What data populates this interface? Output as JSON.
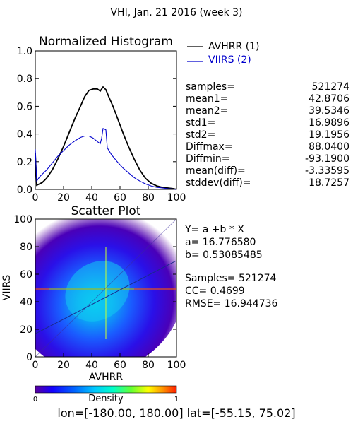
{
  "page_title": "VHI,  Jan. 21 2016 (week 3)",
  "region_text": "lon=[-180.00, 180.00] lat=[-55.15, 75.02]",
  "chart_data": [
    {
      "type": "line",
      "title": "Normalized Histogram",
      "xlabel": "",
      "ylabel": "",
      "xlim": [
        0,
        100
      ],
      "ylim": [
        0,
        1.0
      ],
      "x_ticks": [
        "0",
        "20",
        "40",
        "60",
        "80",
        "100"
      ],
      "y_ticks": [
        "0.0",
        "0.2",
        "0.4",
        "0.6",
        "0.8",
        "1.0"
      ],
      "grid": false,
      "legend_position": "right",
      "series": [
        {
          "name": "AVHRR (1)",
          "color": "#000000",
          "points": [
            [
              0,
              0.26
            ],
            [
              1,
              0.03
            ],
            [
              3,
              0.04
            ],
            [
              5,
              0.05
            ],
            [
              8,
              0.08
            ],
            [
              12,
              0.14
            ],
            [
              16,
              0.22
            ],
            [
              20,
              0.31
            ],
            [
              24,
              0.41
            ],
            [
              28,
              0.51
            ],
            [
              32,
              0.6
            ],
            [
              35,
              0.67
            ],
            [
              38,
              0.715
            ],
            [
              41,
              0.725
            ],
            [
              44,
              0.725
            ],
            [
              46,
              0.71
            ],
            [
              48,
              0.74
            ],
            [
              50,
              0.72
            ],
            [
              52,
              0.67
            ],
            [
              55,
              0.6
            ],
            [
              58,
              0.52
            ],
            [
              62,
              0.41
            ],
            [
              66,
              0.31
            ],
            [
              70,
              0.22
            ],
            [
              74,
              0.14
            ],
            [
              78,
              0.08
            ],
            [
              82,
              0.045
            ],
            [
              86,
              0.025
            ],
            [
              90,
              0.015
            ],
            [
              94,
              0.01
            ],
            [
              98,
              0.005
            ],
            [
              100,
              0.0
            ]
          ]
        },
        {
          "name": "VIIRS (2)",
          "color": "#0000cc",
          "points": [
            [
              0,
              0.29
            ],
            [
              1,
              0.06
            ],
            [
              3,
              0.09
            ],
            [
              5,
              0.11
            ],
            [
              8,
              0.14
            ],
            [
              12,
              0.19
            ],
            [
              16,
              0.24
            ],
            [
              20,
              0.28
            ],
            [
              24,
              0.32
            ],
            [
              28,
              0.35
            ],
            [
              32,
              0.375
            ],
            [
              35,
              0.385
            ],
            [
              38,
              0.385
            ],
            [
              41,
              0.37
            ],
            [
              44,
              0.345
            ],
            [
              46,
              0.33
            ],
            [
              47,
              0.37
            ],
            [
              48,
              0.44
            ],
            [
              50,
              0.43
            ],
            [
              51,
              0.3
            ],
            [
              54,
              0.25
            ],
            [
              58,
              0.2
            ],
            [
              62,
              0.155
            ],
            [
              66,
              0.12
            ],
            [
              70,
              0.085
            ],
            [
              74,
              0.06
            ],
            [
              78,
              0.04
            ],
            [
              82,
              0.025
            ],
            [
              86,
              0.015
            ],
            [
              90,
              0.01
            ],
            [
              94,
              0.005
            ],
            [
              98,
              0.002
            ],
            [
              100,
              0.0
            ]
          ]
        }
      ]
    },
    {
      "type": "heatmap",
      "title": "Scatter Plot",
      "xlabel": "AVHRR",
      "ylabel": "VIIRS",
      "xlim": [
        0,
        100
      ],
      "ylim": [
        0,
        100
      ],
      "x_ticks": [
        "0",
        "20",
        "40",
        "60",
        "80",
        "100"
      ],
      "y_ticks": [
        "0",
        "20",
        "40",
        "60",
        "80",
        "100"
      ],
      "fit_line": {
        "intercept": 16.77658,
        "slope": 0.53085485
      },
      "colorbar": {
        "label": "Density",
        "min_label": "0",
        "max_label": "1"
      },
      "colormap": [
        "#5a00a0",
        "#1400ff",
        "#0066ff",
        "#00c8ff",
        "#00ffc8",
        "#64ff32",
        "#ffff00",
        "#ff9600",
        "#ff1e00"
      ]
    }
  ],
  "stats": [
    {
      "label": "samples=",
      "value": "521274"
    },
    {
      "label": "mean1=",
      "value": "42.8706"
    },
    {
      "label": "mean2=",
      "value": "39.5346"
    },
    {
      "label": "std1=",
      "value": "16.9896"
    },
    {
      "label": "std2=",
      "value": "19.1956"
    },
    {
      "label": "Diffmax=",
      "value": "88.0400"
    },
    {
      "label": "Diffmin=",
      "value": "-93.1900"
    },
    {
      "label": "mean(diff)=",
      "value": "-3.33595"
    },
    {
      "label": "stddev(diff)=",
      "value": "18.7257"
    }
  ],
  "regression": {
    "equation": "Y= a +b * X",
    "a_text": "a= 16.776580",
    "b_text": "b= 0.53085485",
    "samples_text": "Samples= 521274",
    "cc_text": "CC=  0.4699",
    "rmse_text": "RMSE= 16.944736"
  }
}
